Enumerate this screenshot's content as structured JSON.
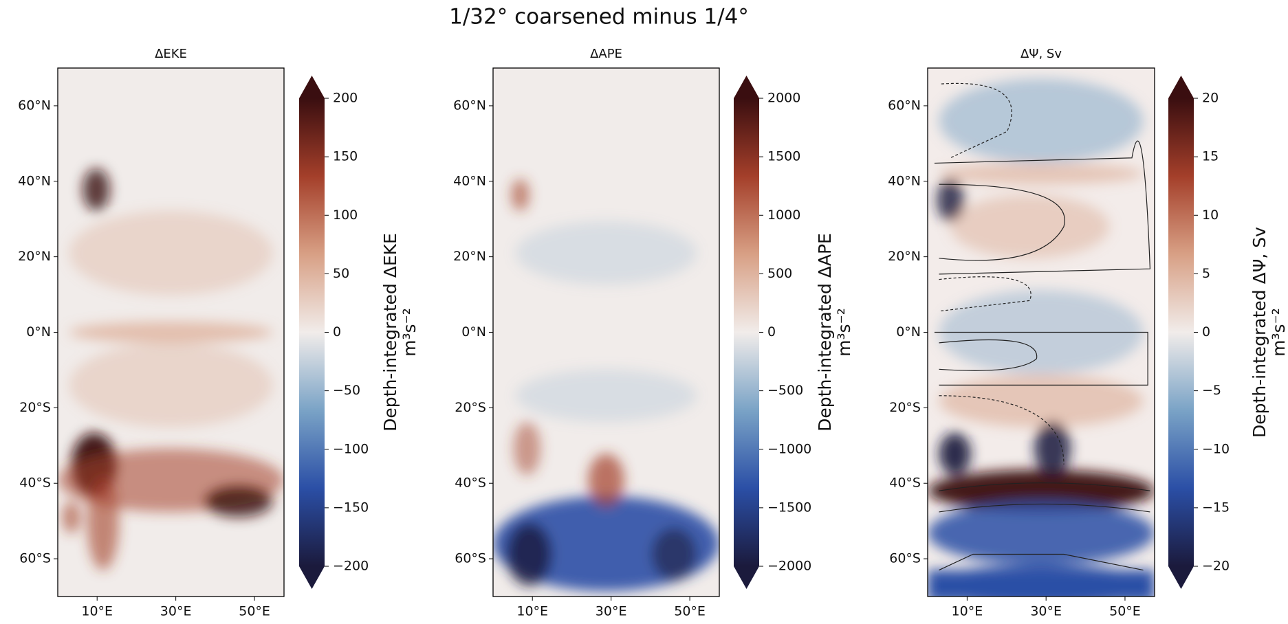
{
  "title": "1/32° coarsened minus 1/4°",
  "chart_data": [
    {
      "type": "map",
      "title": "ΔEKE",
      "xlim": [
        0,
        57.5
      ],
      "xticks": [
        {
          "value": 10,
          "label": "10°E"
        },
        {
          "value": 30,
          "label": "30°E"
        },
        {
          "value": 50,
          "label": "50°E"
        }
      ],
      "ylim": [
        -70,
        70
      ],
      "yticks": [
        {
          "value": -60,
          "label": "60°S"
        },
        {
          "value": -40,
          "label": "40°S"
        },
        {
          "value": -20,
          "label": "20°S"
        },
        {
          "value": 0,
          "label": "0°N"
        },
        {
          "value": 20,
          "label": "20°N"
        },
        {
          "value": 40,
          "label": "40°N"
        },
        {
          "value": 60,
          "label": "60°N"
        }
      ],
      "colorbar_label": "Depth-integrated ΔEKE",
      "colorbar_units": "m³s⁻²",
      "clim": [
        -200,
        200
      ],
      "cticks": [
        {
          "value": -200,
          "label": "−200"
        },
        {
          "value": -150,
          "label": "−150"
        },
        {
          "value": -100,
          "label": "−100"
        },
        {
          "value": -50,
          "label": "−50"
        },
        0,
        50,
        100,
        150,
        200
      ],
      "colormap": [
        "#1b1a3c",
        "#2b4fa6",
        "#7aa3c6",
        "#f1ecea",
        "#d8a085",
        "#a43f2a",
        "#3a0e10"
      ]
    },
    {
      "type": "map",
      "title": "ΔAPE",
      "xlim": [
        0,
        57.5
      ],
      "xticks": [
        {
          "value": 10,
          "label": "10°E"
        },
        {
          "value": 30,
          "label": "30°E"
        },
        {
          "value": 50,
          "label": "50°E"
        }
      ],
      "ylim": [
        -70,
        70
      ],
      "yticks": [
        {
          "value": -60,
          "label": "60°S"
        },
        {
          "value": -40,
          "label": "40°S"
        },
        {
          "value": -20,
          "label": "20°S"
        },
        {
          "value": 0,
          "label": "0°N"
        },
        {
          "value": 20,
          "label": "20°N"
        },
        {
          "value": 40,
          "label": "40°N"
        },
        {
          "value": 60,
          "label": "60°N"
        }
      ],
      "colorbar_label": "Depth-integrated ΔAPE",
      "colorbar_units": "m³s⁻²",
      "clim": [
        -2000,
        2000
      ],
      "cticks": [
        {
          "value": -2000,
          "label": "−2000"
        },
        {
          "value": -1500,
          "label": "−1500"
        },
        {
          "value": -1000,
          "label": "−1000"
        },
        {
          "value": -500,
          "label": "−500"
        },
        0,
        500,
        1000,
        1500,
        2000
      ],
      "colormap": [
        "#1b1a3c",
        "#2b4fa6",
        "#7aa3c6",
        "#f1ecea",
        "#d8a085",
        "#a43f2a",
        "#3a0e10"
      ]
    },
    {
      "type": "map",
      "title": "ΔΨ, Sv",
      "xlim": [
        0,
        57.5
      ],
      "xticks": [
        {
          "value": 10,
          "label": "10°E"
        },
        {
          "value": 30,
          "label": "30°E"
        },
        {
          "value": 50,
          "label": "50°E"
        }
      ],
      "ylim": [
        -70,
        70
      ],
      "yticks": [
        {
          "value": -60,
          "label": "60°S"
        },
        {
          "value": -40,
          "label": "40°S"
        },
        {
          "value": -20,
          "label": "20°S"
        },
        {
          "value": 0,
          "label": "0°N"
        },
        {
          "value": 20,
          "label": "20°N"
        },
        {
          "value": 40,
          "label": "40°N"
        },
        {
          "value": 60,
          "label": "60°N"
        }
      ],
      "colorbar_label": "Depth-integrated ΔΨ, Sv",
      "colorbar_units": "m³s⁻²",
      "clim": [
        -20,
        20
      ],
      "cticks": [
        {
          "value": -20,
          "label": "−20"
        },
        {
          "value": -15,
          "label": "−15"
        },
        {
          "value": -10,
          "label": "−10"
        },
        {
          "value": -5,
          "label": "−5"
        },
        0,
        5,
        10,
        15,
        20
      ],
      "colormap": [
        "#1b1a3c",
        "#2b4fa6",
        "#7aa3c6",
        "#f1ecea",
        "#d8a085",
        "#a43f2a",
        "#3a0e10"
      ]
    }
  ]
}
